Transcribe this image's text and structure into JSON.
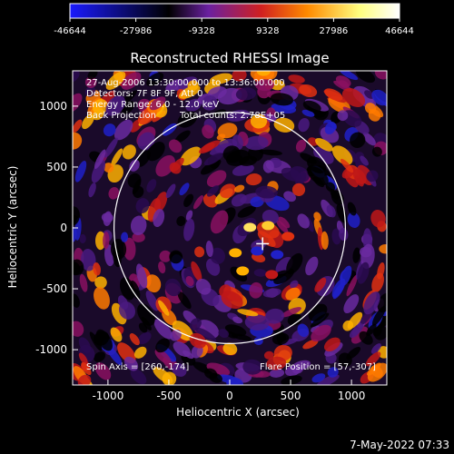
{
  "colorbar": {
    "tick_labels": [
      "-46644",
      "-27986",
      "-9328",
      "9328",
      "27986",
      "46644"
    ],
    "min": -46644,
    "max": 46644,
    "colormap": [
      "#1a1aff",
      "#000000",
      "#6a20a0",
      "#d02020",
      "#ff8a00",
      "#ffff80",
      "#ffffff"
    ]
  },
  "plot": {
    "title": "Reconstructed RHESSI Image",
    "xlabel": "Heliocentric X (arcsec)",
    "ylabel": "Heliocentric Y (arcsec)",
    "x_ticks": [
      "-1000",
      "-500",
      "0",
      "500",
      "1000"
    ],
    "y_ticks": [
      "1000",
      "500",
      "0",
      "-500",
      "-1000"
    ],
    "x_tick_values": [
      -1000,
      -500,
      0,
      500,
      1000
    ],
    "y_tick_values": [
      1000,
      500,
      0,
      -500,
      -1000
    ],
    "xlim": [
      -1290,
      1290
    ],
    "ylim": [
      -1290,
      1290
    ],
    "solar_limb_radius_arcsec": 950,
    "flare_marker": {
      "x": 270,
      "y": -130
    }
  },
  "annotations": {
    "time_range": "27-Aug-2006 13:30:00.000 to 13:36:00.000",
    "detectors": "Detectors: 7F 8F 9F, Att 0",
    "energy_range": "Energy Range: 6.0 - 12.0 keV",
    "method": "Back Projection",
    "total_counts": "Total counts: 2.78E+05",
    "spin_axis": "Spin Axis = [260,-174]",
    "flare_position": "Flare Position = [57,-307]"
  },
  "footer": {
    "timestamp": "7-May-2022 07:33"
  }
}
